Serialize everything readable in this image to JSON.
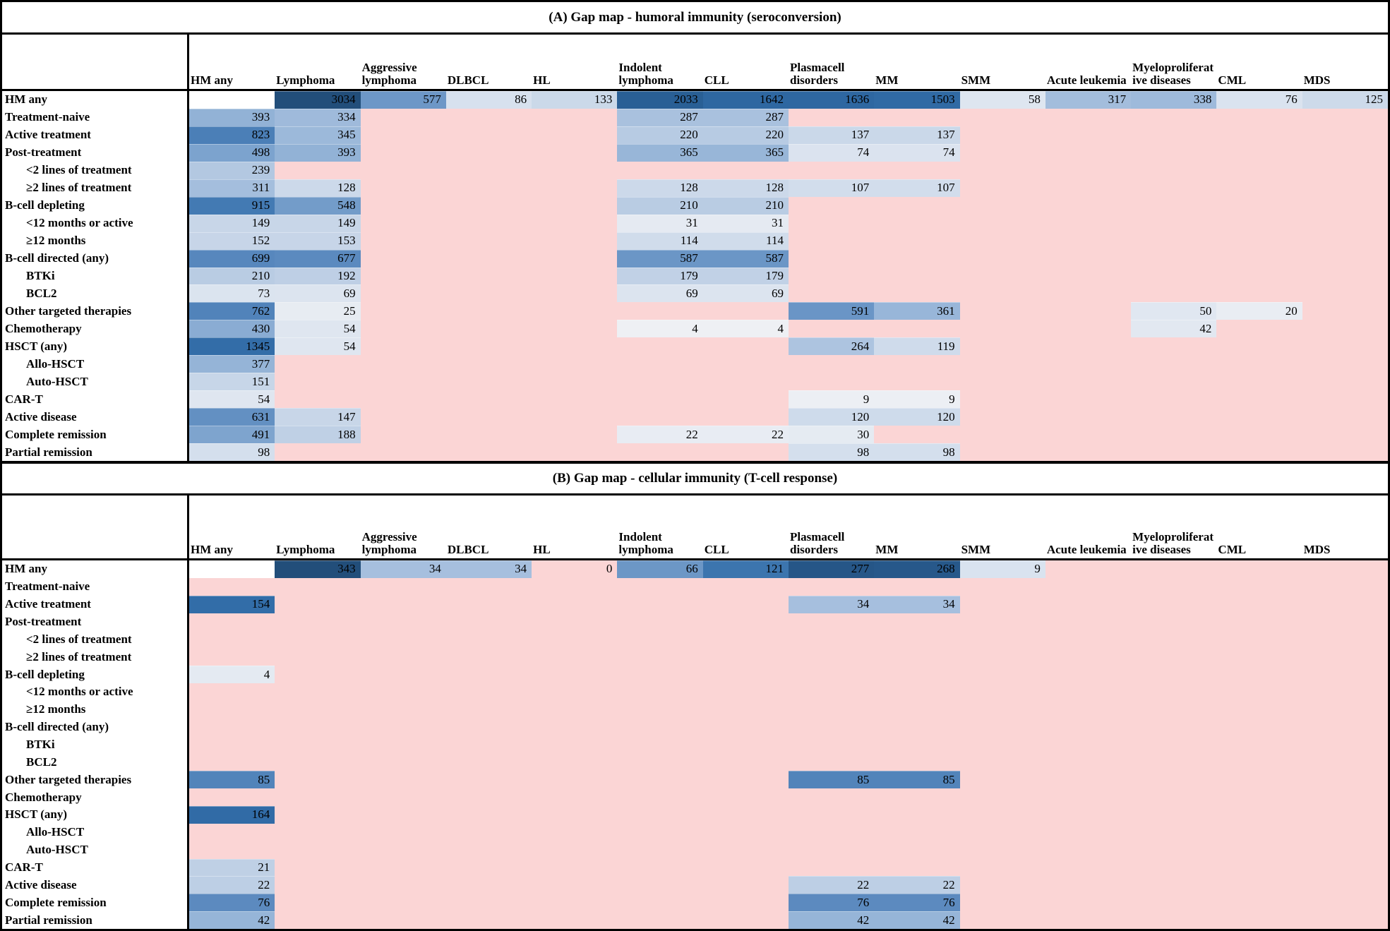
{
  "colors": {
    "empty_cell_pink": "#FBD5D5",
    "blank_self_cell_white": "#FFFFFF",
    "heat_scale": [
      [
        0.0,
        "#f2f3f5"
      ],
      [
        0.08,
        "#e9edf3"
      ],
      [
        0.16,
        "#dae3ef"
      ],
      [
        0.24,
        "#c2d2e6"
      ],
      [
        0.32,
        "#a4bedd"
      ],
      [
        0.4,
        "#7fa5cf"
      ],
      [
        0.48,
        "#5787bd"
      ],
      [
        0.56,
        "#4078b1"
      ],
      [
        0.66,
        "#336ea9"
      ],
      [
        0.78,
        "#2b639c"
      ],
      [
        0.9,
        "#265687"
      ],
      [
        1.0,
        "#224e7a"
      ]
    ],
    "border_black": "#000000"
  },
  "row_labels": [
    {
      "label": "HM any",
      "indent": 0
    },
    {
      "label": "Treatment-naive",
      "indent": 0
    },
    {
      "label": "Active treatment",
      "indent": 0
    },
    {
      "label": "Post-treatment",
      "indent": 0
    },
    {
      "label": "<2 lines of treatment",
      "indent": 1
    },
    {
      "label": "≥2 lines of treatment",
      "indent": 1
    },
    {
      "label": "B-cell depleting",
      "indent": 0
    },
    {
      "label": "<12 months or active",
      "indent": 1
    },
    {
      "label": "≥12 months",
      "indent": 1
    },
    {
      "label": "B-cell directed (any)",
      "indent": 0
    },
    {
      "label": "BTKi",
      "indent": 1
    },
    {
      "label": "BCL2",
      "indent": 1
    },
    {
      "label": "Other targeted therapies",
      "indent": 0
    },
    {
      "label": "Chemotherapy",
      "indent": 0
    },
    {
      "label": "HSCT (any)",
      "indent": 0
    },
    {
      "label": "Allo-HSCT",
      "indent": 1
    },
    {
      "label": "Auto-HSCT",
      "indent": 1
    },
    {
      "label": "CAR-T",
      "indent": 0
    },
    {
      "label": "Active disease",
      "indent": 0
    },
    {
      "label": "Complete remission",
      "indent": 0
    },
    {
      "label": "Partial remission",
      "indent": 0
    }
  ],
  "columns": [
    "HM any",
    "Lymphoma",
    "Aggressive lymphoma",
    "DLBCL",
    "HL",
    "Indolent lymphoma",
    "CLL",
    "Plasmacell disorders",
    "MM",
    "SMM",
    "Acute leukemia",
    "Myeloproliferative diseases",
    "CML",
    "MDS"
  ],
  "chart_data": [
    {
      "type": "heatmap",
      "title": "(A) Gap map - humoral immunity (seroconversion)",
      "legend_position": "none",
      "grid": false,
      "max_value": 3034,
      "blank_white_cells": [
        [
          0,
          0
        ]
      ],
      "cells": [
        [
          0,
          1,
          3034
        ],
        [
          0,
          2,
          577
        ],
        [
          0,
          3,
          86
        ],
        [
          0,
          4,
          133
        ],
        [
          0,
          5,
          2033
        ],
        [
          0,
          6,
          1642
        ],
        [
          0,
          7,
          1636
        ],
        [
          0,
          8,
          1503
        ],
        [
          0,
          9,
          58
        ],
        [
          0,
          10,
          317
        ],
        [
          0,
          11,
          338
        ],
        [
          0,
          12,
          76
        ],
        [
          0,
          13,
          125
        ],
        [
          1,
          0,
          393
        ],
        [
          1,
          1,
          334
        ],
        [
          1,
          5,
          287
        ],
        [
          1,
          6,
          287
        ],
        [
          2,
          0,
          823
        ],
        [
          2,
          1,
          345
        ],
        [
          2,
          5,
          220
        ],
        [
          2,
          6,
          220
        ],
        [
          2,
          7,
          137
        ],
        [
          2,
          8,
          137
        ],
        [
          3,
          0,
          498
        ],
        [
          3,
          1,
          393
        ],
        [
          3,
          5,
          365
        ],
        [
          3,
          6,
          365
        ],
        [
          3,
          7,
          74
        ],
        [
          3,
          8,
          74
        ],
        [
          4,
          0,
          239
        ],
        [
          5,
          0,
          311
        ],
        [
          5,
          1,
          128
        ],
        [
          5,
          5,
          128
        ],
        [
          5,
          6,
          128
        ],
        [
          5,
          7,
          107
        ],
        [
          5,
          8,
          107
        ],
        [
          6,
          0,
          915
        ],
        [
          6,
          1,
          548
        ],
        [
          6,
          5,
          210
        ],
        [
          6,
          6,
          210
        ],
        [
          7,
          0,
          149
        ],
        [
          7,
          1,
          149
        ],
        [
          7,
          5,
          31
        ],
        [
          7,
          6,
          31
        ],
        [
          8,
          0,
          152
        ],
        [
          8,
          1,
          153
        ],
        [
          8,
          5,
          114
        ],
        [
          8,
          6,
          114
        ],
        [
          9,
          0,
          699
        ],
        [
          9,
          1,
          677
        ],
        [
          9,
          5,
          587
        ],
        [
          9,
          6,
          587
        ],
        [
          10,
          0,
          210
        ],
        [
          10,
          1,
          192
        ],
        [
          10,
          5,
          179
        ],
        [
          10,
          6,
          179
        ],
        [
          11,
          0,
          73
        ],
        [
          11,
          1,
          69
        ],
        [
          11,
          5,
          69
        ],
        [
          11,
          6,
          69
        ],
        [
          12,
          0,
          762
        ],
        [
          12,
          1,
          25
        ],
        [
          12,
          7,
          591
        ],
        [
          12,
          8,
          361
        ],
        [
          12,
          11,
          50
        ],
        [
          12,
          12,
          20
        ],
        [
          13,
          0,
          430
        ],
        [
          13,
          1,
          54
        ],
        [
          13,
          5,
          4
        ],
        [
          13,
          6,
          4
        ],
        [
          13,
          11,
          42
        ],
        [
          14,
          0,
          1345
        ],
        [
          14,
          1,
          54
        ],
        [
          14,
          7,
          264
        ],
        [
          14,
          8,
          119
        ],
        [
          15,
          0,
          377
        ],
        [
          16,
          0,
          151
        ],
        [
          17,
          0,
          54
        ],
        [
          17,
          7,
          9
        ],
        [
          17,
          8,
          9
        ],
        [
          18,
          0,
          631
        ],
        [
          18,
          1,
          147
        ],
        [
          18,
          7,
          120
        ],
        [
          18,
          8,
          120
        ],
        [
          19,
          0,
          491
        ],
        [
          19,
          1,
          188
        ],
        [
          19,
          5,
          22
        ],
        [
          19,
          6,
          22
        ],
        [
          19,
          7,
          30
        ],
        [
          20,
          0,
          98
        ],
        [
          20,
          7,
          98
        ],
        [
          20,
          8,
          98
        ]
      ]
    },
    {
      "type": "heatmap",
      "title": "(B) Gap map - cellular immunity (T-cell response)",
      "legend_position": "none",
      "grid": false,
      "max_value": 343,
      "blank_white_cells": [
        [
          0,
          0
        ]
      ],
      "cells": [
        [
          0,
          1,
          343
        ],
        [
          0,
          2,
          34
        ],
        [
          0,
          3,
          34
        ],
        [
          0,
          4,
          0
        ],
        [
          0,
          5,
          66
        ],
        [
          0,
          6,
          121
        ],
        [
          0,
          7,
          277
        ],
        [
          0,
          8,
          268
        ],
        [
          0,
          9,
          9
        ],
        [
          2,
          0,
          154
        ],
        [
          2,
          7,
          34
        ],
        [
          2,
          8,
          34
        ],
        [
          6,
          0,
          4
        ],
        [
          12,
          0,
          85
        ],
        [
          12,
          7,
          85
        ],
        [
          12,
          8,
          85
        ],
        [
          14,
          0,
          164
        ],
        [
          17,
          0,
          21
        ],
        [
          18,
          0,
          22
        ],
        [
          18,
          7,
          22
        ],
        [
          18,
          8,
          22
        ],
        [
          19,
          0,
          76
        ],
        [
          19,
          7,
          76
        ],
        [
          19,
          8,
          76
        ],
        [
          20,
          0,
          42
        ],
        [
          20,
          7,
          42
        ],
        [
          20,
          8,
          42
        ]
      ]
    }
  ]
}
